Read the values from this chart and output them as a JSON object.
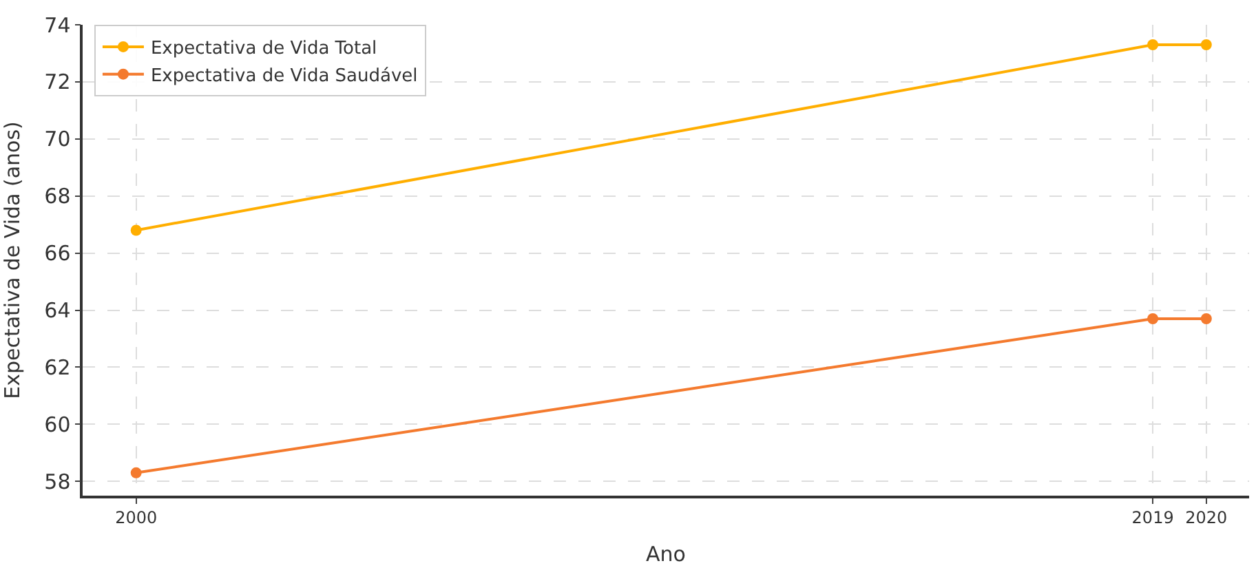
{
  "chart_data": {
    "type": "line",
    "xlabel": "Ano",
    "ylabel": "Expectativa de Vida (anos)",
    "x": [
      2000,
      2019,
      2020
    ],
    "series": [
      {
        "name": "Expectativa de Vida Total",
        "color": "#ffae00",
        "values": [
          66.8,
          73.3,
          73.3
        ]
      },
      {
        "name": "Expectativa de Vida Saudável",
        "color": "#f47a2e",
        "values": [
          58.3,
          63.7,
          63.7
        ]
      }
    ],
    "xlim": [
      1999,
      2020.8
    ],
    "xticks": [
      2000,
      2019,
      2020
    ],
    "ylim": [
      57.5,
      74
    ],
    "yticks": [
      58,
      60,
      62,
      64,
      66,
      68,
      70,
      72,
      74
    ],
    "grid": true,
    "legend": "top left",
    "marker": "circle",
    "line_style": "solid"
  }
}
